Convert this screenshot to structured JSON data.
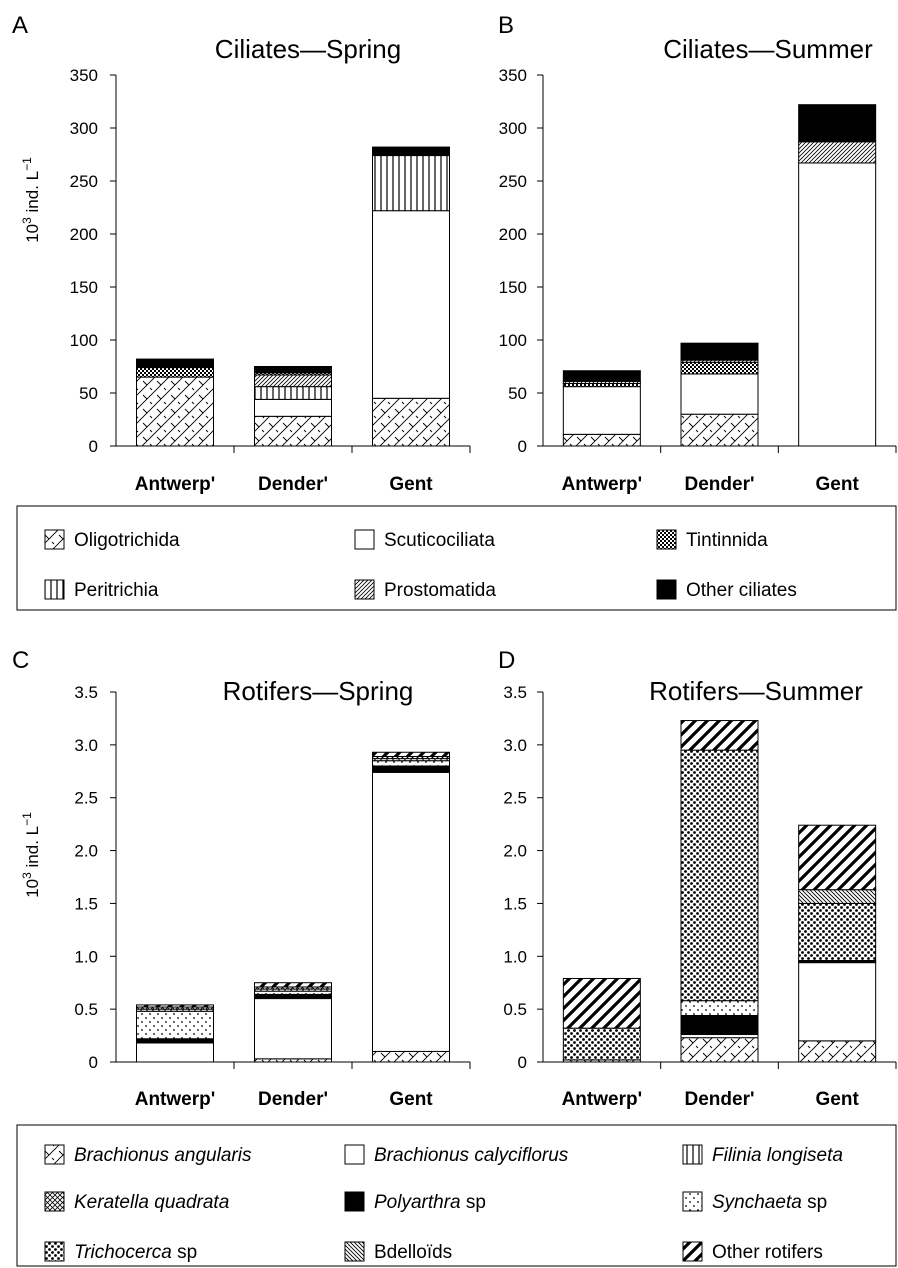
{
  "chart_data": [
    {
      "type": "bar",
      "stacked": true,
      "panel": "A",
      "title": "Ciliates—Spring",
      "ylabel": "10",
      "ylabel_sup": "3",
      "ylabel_rest": " ind. L",
      "ylabel_exp": "−1",
      "ylim": [
        0,
        350
      ],
      "yticks": [
        "0",
        "50",
        "100",
        "150",
        "200",
        "250",
        "300",
        "350"
      ],
      "categories": [
        "Antwerp'",
        "Dender'",
        "Gent"
      ],
      "series": [
        {
          "name": "Oligotrichida",
          "values": [
            65,
            28,
            45
          ]
        },
        {
          "name": "Scuticociliata",
          "values": [
            0,
            16,
            177
          ]
        },
        {
          "name": "Peritrichia",
          "values": [
            0,
            12,
            52
          ]
        },
        {
          "name": "Prostomatida",
          "values": [
            0,
            11,
            0
          ]
        },
        {
          "name": "Tintinnida",
          "values": [
            9,
            2,
            0
          ]
        },
        {
          "name": "Other ciliates",
          "values": [
            8,
            6,
            8
          ]
        }
      ]
    },
    {
      "type": "bar",
      "stacked": true,
      "panel": "B",
      "title": "Ciliates—Summer",
      "ylim": [
        0,
        350
      ],
      "yticks": [
        "0",
        "50",
        "100",
        "150",
        "200",
        "250",
        "300",
        "350"
      ],
      "categories": [
        "Antwerp'",
        "Dender'",
        "Gent"
      ],
      "series": [
        {
          "name": "Oligotrichida",
          "values": [
            11,
            30,
            0
          ]
        },
        {
          "name": "Scuticociliata",
          "values": [
            45,
            38,
            267
          ]
        },
        {
          "name": "Tintinnida",
          "values": [
            3,
            11,
            0
          ]
        },
        {
          "name": "Prostomatida",
          "values": [
            2,
            2,
            20
          ]
        },
        {
          "name": "Other ciliates",
          "values": [
            10,
            16,
            35
          ]
        }
      ]
    },
    {
      "type": "bar",
      "stacked": true,
      "panel": "C",
      "title": "Rotifers—Spring",
      "ylabel": "10",
      "ylabel_sup": "3",
      "ylabel_rest": " ind. L",
      "ylabel_exp": "−1",
      "ylim": [
        0,
        3.5
      ],
      "yticks": [
        "0",
        "0.5",
        "1.0",
        "1.5",
        "2.0",
        "2.5",
        "3.0",
        "3.5"
      ],
      "categories": [
        "Antwerp'",
        "Dender'",
        "Gent"
      ],
      "series": [
        {
          "name": "Brachionus angularis",
          "values": [
            0,
            0.03,
            0.1
          ]
        },
        {
          "name": "Brachionus calyciflorus",
          "values": [
            0.18,
            0.57,
            2.64
          ]
        },
        {
          "name": "Polyarthra sp",
          "values": [
            0.04,
            0.04,
            0.06
          ]
        },
        {
          "name": "Synchaeta sp",
          "values": [
            0.26,
            0.03,
            0.05
          ]
        },
        {
          "name": "Filinia longiseta",
          "values": [
            0.02,
            0.02,
            0.02
          ]
        },
        {
          "name": "Keratella quadrata",
          "values": [
            0.02,
            0.02,
            0.02
          ]
        },
        {
          "name": "Other rotifers",
          "values": [
            0.02,
            0.04,
            0.04
          ]
        }
      ]
    },
    {
      "type": "bar",
      "stacked": true,
      "panel": "D",
      "title": "Rotifers—Summer",
      "ylim": [
        0,
        3.5
      ],
      "yticks": [
        "0",
        "0.5",
        "1.0",
        "1.5",
        "2.0",
        "2.5",
        "3.0",
        "3.5"
      ],
      "categories": [
        "Antwerp'",
        "Dender'",
        "Gent"
      ],
      "series": [
        {
          "name": "Brachionus angularis",
          "values": [
            0.02,
            0.23,
            0.2
          ]
        },
        {
          "name": "Brachionus calyciflorus",
          "values": [
            0,
            0.03,
            0.74
          ]
        },
        {
          "name": "Polyarthra sp",
          "values": [
            0,
            0.18,
            0.02
          ]
        },
        {
          "name": "Synchaeta sp",
          "values": [
            0,
            0.14,
            0
          ]
        },
        {
          "name": "Trichocerca sp",
          "values": [
            0.3,
            2.37,
            0.54
          ]
        },
        {
          "name": "Bdelloïds",
          "values": [
            0,
            0,
            0.13
          ]
        },
        {
          "name": "Other rotifers",
          "values": [
            0.47,
            0.28,
            0.61
          ]
        }
      ]
    }
  ],
  "legends": {
    "ciliates": [
      {
        "key": "olig",
        "label": "Oligotrichida",
        "italic": false
      },
      {
        "key": "scut",
        "label": "Scuticociliata",
        "italic": false
      },
      {
        "key": "tint",
        "label": "Tintinnida",
        "italic": false
      },
      {
        "key": "peri",
        "label": "Peritrichia",
        "italic": false
      },
      {
        "key": "prost",
        "label": "Prostomatida",
        "italic": false
      },
      {
        "key": "otherc",
        "label": "Other ciliates",
        "italic": false
      }
    ],
    "rotifers": [
      {
        "key": "bang",
        "label": "Brachionus angularis",
        "suffix": "",
        "italic": true
      },
      {
        "key": "bcal",
        "label": "Brachionus calyciflorus",
        "suffix": "",
        "italic": true
      },
      {
        "key": "fil",
        "label": "Filinia longiseta",
        "suffix": "",
        "italic": true
      },
      {
        "key": "ker",
        "label": "Keratella quadrata",
        "suffix": "",
        "italic": true
      },
      {
        "key": "poly",
        "label": "Polyarthra",
        "suffix": " sp",
        "italic": true
      },
      {
        "key": "syn",
        "label": "Synchaeta",
        "suffix": " sp",
        "italic": true
      },
      {
        "key": "tri",
        "label": "Trichocerca",
        "suffix": " sp",
        "italic": true
      },
      {
        "key": "bdel",
        "label": "Bdelloïds",
        "suffix": "",
        "italic": false
      },
      {
        "key": "otherr",
        "label": "Other rotifers",
        "suffix": "",
        "italic": false
      }
    ]
  }
}
